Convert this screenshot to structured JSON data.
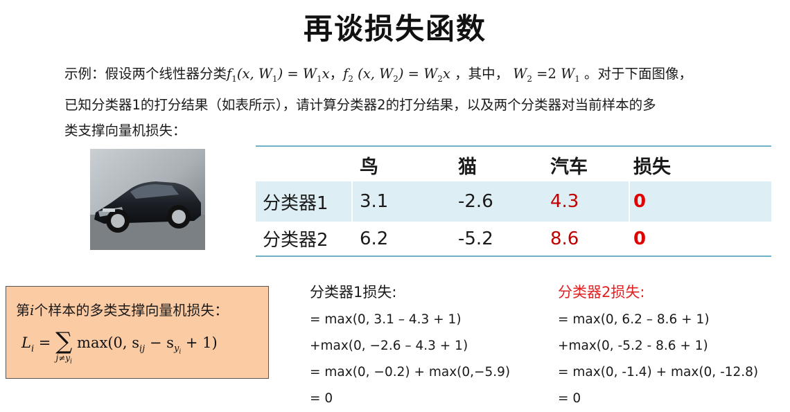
{
  "title": "再谈损失函数",
  "intro": {
    "line1_a": "示例：假设两个线性器分类",
    "f1_name": "f",
    "f1_sub": "1",
    "f1_args": "(x, W",
    "f1_args_sub": "1",
    "f1_eq": ") = W",
    "f1_rhs_sub": "1",
    "f1_rhs_x": "x",
    "sep1": "，",
    "f2_name": "f",
    "f2_sub": "2",
    "f2_args": " (x, W",
    "f2_args_sub": "2",
    "f2_eq": ") = W",
    "f2_rhs_sub": "2",
    "f2_rhs_x": "x",
    "sep2": " ，其中，",
    "w2": "W",
    "w2_sub": "2",
    "w2_eq": " =2 ",
    "w1": "W",
    "w1_sub": "1",
    "line1_b": " 。对于下面图像，",
    "line2": "已知分类器1的打分结果（如表所示），请计算分类器2的打分结果，以及两个分类器对当前样本的多",
    "line3": "类支撑向量机损失："
  },
  "table": {
    "headers": [
      "",
      "鸟",
      "猫",
      "汽车",
      "损失"
    ],
    "rows": [
      {
        "name": "分类器1",
        "bird": "3.1",
        "cat": "-2.6",
        "car": "4.3",
        "loss": "0"
      },
      {
        "name": "分类器2",
        "bird": "6.2",
        "cat": "-5.2",
        "car": "8.6",
        "loss": "0"
      }
    ]
  },
  "loss_box": {
    "label_a": "第",
    "label_i": "i",
    "label_b": "个样本的多类支撑向量机损失：",
    "lhs": "L",
    "lhs_sub": "i",
    "eq": " = ",
    "sum": "∑",
    "sum_sub": "j≠y",
    "sum_sub_i": "i",
    "rhs": "max(0, s",
    "rhs_sub1": "ij",
    "rhs_mid": " − s",
    "rhs_sub2": "y",
    "rhs_sub2_i": "i",
    "rhs_end": " + 1)"
  },
  "calc1": {
    "heading": "分类器1损失:",
    "lines": [
      "= max(0, 3.1 – 4.3 + 1)",
      "+max(0, −2.6 – 4.3 + 1)",
      "= max(0, −0.2) + max(0,−5.9)",
      "= 0"
    ]
  },
  "calc2": {
    "heading": "分类器2损失:",
    "lines": [
      "= max(0, 6.2 – 8.6 + 1)",
      "+max(0, -5.2 - 8.6 + 1)",
      "= max(0, -1.4) + max(0, -12.8)",
      "= 0"
    ]
  },
  "image": {
    "description_icon": "car-photo"
  },
  "colors": {
    "table_rule": "#6fb2c8",
    "row_highlight": "#deeef5",
    "loss_box": "#fbcba4",
    "red": "#c00000"
  }
}
